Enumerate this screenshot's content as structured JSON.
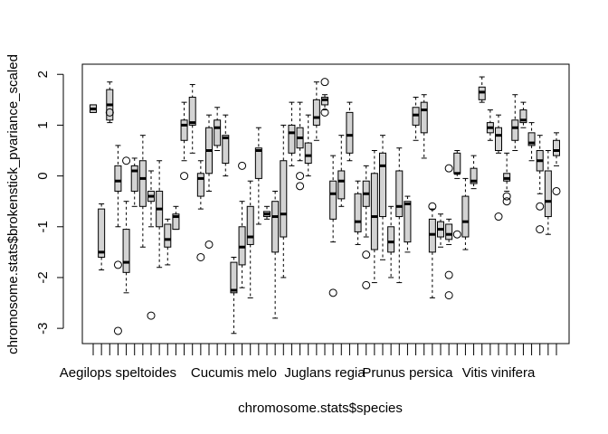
{
  "chart_data": {
    "type": "box",
    "xlabel": "chromosome.stats$species",
    "ylabel": "chromosome.stats$brokenstick_pvariance_scaled",
    "ylim": [
      -3.3,
      2.2
    ],
    "yticks": [
      -3,
      -2,
      -1,
      0,
      1,
      2
    ],
    "ytick_labels": [
      "-3",
      "-2",
      "-1",
      "0",
      "1",
      "2"
    ],
    "x_labels": [
      {
        "index": 3,
        "label": "Aegilops speltoides"
      },
      {
        "index": 17,
        "label": "Cucumis melo"
      },
      {
        "index": 28,
        "label": "Juglans regia"
      },
      {
        "index": 38,
        "label": "Prunus persica"
      },
      {
        "index": 49,
        "label": "Vitis vinifera"
      }
    ],
    "boxes": [
      {
        "min": 1.25,
        "q1": 1.25,
        "median": 1.32,
        "q3": 1.4,
        "max": 1.4,
        "outliers": []
      },
      {
        "min": -1.85,
        "q1": -1.6,
        "median": -1.5,
        "q3": -0.65,
        "max": -0.55,
        "outliers": []
      },
      {
        "min": 1.05,
        "q1": 1.1,
        "median": 1.4,
        "q3": 1.7,
        "max": 1.85,
        "outliers": [
          1.25
        ]
      },
      {
        "min": -1.0,
        "q1": -0.3,
        "median": -0.1,
        "q3": 0.2,
        "max": 0.6,
        "outliers": [
          -1.75,
          -3.05
        ]
      },
      {
        "min": -2.3,
        "q1": -1.9,
        "median": -1.7,
        "q3": -1.05,
        "max": -0.5,
        "outliers": [
          0.3
        ]
      },
      {
        "min": -0.6,
        "q1": -0.3,
        "median": 0.1,
        "q3": 0.2,
        "max": 0.35,
        "outliers": []
      },
      {
        "min": -1.4,
        "q1": -0.6,
        "median": -0.05,
        "q3": 0.3,
        "max": 0.8,
        "outliers": []
      },
      {
        "min": -1.0,
        "q1": -0.5,
        "median": -0.4,
        "q3": -0.3,
        "max": 0.1,
        "outliers": [
          -2.75
        ]
      },
      {
        "min": -1.8,
        "q1": -1.0,
        "median": -0.65,
        "q3": -0.3,
        "max": 0.3,
        "outliers": []
      },
      {
        "min": -1.75,
        "q1": -1.4,
        "median": -1.25,
        "q3": -0.95,
        "max": -0.85,
        "outliers": []
      },
      {
        "min": -1.05,
        "q1": -1.05,
        "median": -0.8,
        "q3": -0.75,
        "max": -0.6,
        "outliers": []
      },
      {
        "min": 0.3,
        "q1": 0.7,
        "median": 1.0,
        "q3": 1.1,
        "max": 1.45,
        "outliers": [
          0.0
        ]
      },
      {
        "min": 0.45,
        "q1": 1.0,
        "median": 1.05,
        "q3": 1.55,
        "max": 1.8,
        "outliers": []
      },
      {
        "min": -0.65,
        "q1": -0.4,
        "median": -0.05,
        "q3": 0.05,
        "max": 0.3,
        "outliers": [
          -1.6
        ]
      },
      {
        "min": -0.3,
        "q1": 0.05,
        "median": 0.5,
        "q3": 0.95,
        "max": 1.2,
        "outliers": [
          -1.35
        ]
      },
      {
        "min": 0.5,
        "q1": 0.6,
        "median": 0.95,
        "q3": 1.1,
        "max": 1.35,
        "outliers": []
      },
      {
        "min": 0.0,
        "q1": 0.25,
        "median": 0.75,
        "q3": 0.8,
        "max": 1.2,
        "outliers": []
      },
      {
        "min": -3.1,
        "q1": -2.3,
        "median": -2.25,
        "q3": -1.7,
        "max": -1.6,
        "outliers": []
      },
      {
        "min": -2.2,
        "q1": -1.75,
        "median": -1.4,
        "q3": -1.0,
        "max": -0.5,
        "outliers": [
          0.2
        ]
      },
      {
        "min": -2.4,
        "q1": -1.35,
        "median": -1.2,
        "q3": -0.6,
        "max": -0.1,
        "outliers": []
      },
      {
        "min": -0.95,
        "q1": -0.05,
        "median": 0.5,
        "q3": 0.55,
        "max": 0.95,
        "outliers": []
      },
      {
        "min": -0.85,
        "q1": -0.8,
        "median": -0.75,
        "q3": -0.7,
        "max": -0.6,
        "outliers": []
      },
      {
        "min": -2.8,
        "q1": -1.5,
        "median": -0.8,
        "q3": -0.5,
        "max": -0.3,
        "outliers": []
      },
      {
        "min": -2.0,
        "q1": -1.2,
        "median": -0.75,
        "q3": 0.3,
        "max": 1.0,
        "outliers": []
      },
      {
        "min": 0.2,
        "q1": 0.45,
        "median": 0.85,
        "q3": 1.0,
        "max": 1.45,
        "outliers": []
      },
      {
        "min": 0.3,
        "q1": 0.55,
        "median": 0.75,
        "q3": 0.95,
        "max": 1.45,
        "outliers": [
          0.0,
          -0.2
        ]
      },
      {
        "min": 0.0,
        "q1": 0.25,
        "median": 0.4,
        "q3": 0.65,
        "max": 1.2,
        "outliers": []
      },
      {
        "min": 0.7,
        "q1": 1.0,
        "median": 1.15,
        "q3": 1.5,
        "max": 1.85,
        "outliers": []
      },
      {
        "min": 1.3,
        "q1": 1.4,
        "median": 1.5,
        "q3": 1.55,
        "max": 1.6,
        "outliers": [
          1.85,
          1.25
        ]
      },
      {
        "min": -1.3,
        "q1": -0.85,
        "median": -0.35,
        "q3": -0.1,
        "max": 0.4,
        "outliers": [
          -2.3
        ]
      },
      {
        "min": -0.6,
        "q1": -0.45,
        "median": -0.1,
        "q3": 0.1,
        "max": 0.8,
        "outliers": []
      },
      {
        "min": 0.3,
        "q1": 0.45,
        "median": 0.8,
        "q3": 1.25,
        "max": 1.45,
        "outliers": []
      },
      {
        "min": -1.35,
        "q1": -1.1,
        "median": -0.9,
        "q3": -0.35,
        "max": -0.1,
        "outliers": []
      },
      {
        "min": -1.2,
        "q1": -0.6,
        "median": -0.35,
        "q3": -0.1,
        "max": 0.2,
        "outliers": [
          -1.55,
          -2.15
        ]
      },
      {
        "min": -2.1,
        "q1": -1.45,
        "median": -0.8,
        "q3": 0.05,
        "max": 0.5,
        "outliers": []
      },
      {
        "min": -1.65,
        "q1": -0.8,
        "median": 0.2,
        "q3": 0.45,
        "max": 0.8,
        "outliers": []
      },
      {
        "min": -2.0,
        "q1": -1.5,
        "median": -1.3,
        "q3": -1.0,
        "max": -0.6,
        "outliers": []
      },
      {
        "min": -2.1,
        "q1": -0.8,
        "median": -0.6,
        "q3": 0.1,
        "max": 0.55,
        "outliers": []
      },
      {
        "min": -1.5,
        "q1": -1.3,
        "median": -0.55,
        "q3": -0.5,
        "max": -0.4,
        "outliers": []
      },
      {
        "min": 0.7,
        "q1": 1.0,
        "median": 1.2,
        "q3": 1.35,
        "max": 1.55,
        "outliers": []
      },
      {
        "min": 0.35,
        "q1": 0.85,
        "median": 1.3,
        "q3": 1.45,
        "max": 1.6,
        "outliers": []
      },
      {
        "min": -2.4,
        "q1": -1.5,
        "median": -1.15,
        "q3": -0.85,
        "max": -0.65,
        "outliers": [
          -0.6
        ]
      },
      {
        "min": -1.4,
        "q1": -1.2,
        "median": -1.05,
        "q3": -0.9,
        "max": -0.75,
        "outliers": []
      },
      {
        "min": -1.35,
        "q1": -1.25,
        "median": -1.15,
        "q3": -0.95,
        "max": -0.85,
        "outliers": [
          -1.95,
          -2.35,
          0.15
        ]
      },
      {
        "min": -0.05,
        "q1": 0.05,
        "median": 0.05,
        "q3": 0.45,
        "max": 0.5,
        "outliers": [
          -1.15
        ]
      },
      {
        "min": -1.45,
        "q1": -1.2,
        "median": -0.9,
        "q3": -0.4,
        "max": -0.05,
        "outliers": []
      },
      {
        "min": -0.25,
        "q1": -0.15,
        "median": -0.1,
        "q3": 0.15,
        "max": 0.4,
        "outliers": []
      },
      {
        "min": 1.45,
        "q1": 1.5,
        "median": 1.65,
        "q3": 1.75,
        "max": 1.95,
        "outliers": []
      },
      {
        "min": 0.7,
        "q1": 0.85,
        "median": 0.95,
        "q3": 1.05,
        "max": 1.3,
        "outliers": []
      },
      {
        "min": 0.45,
        "q1": 0.5,
        "median": 0.8,
        "q3": 0.95,
        "max": 1.2,
        "outliers": [
          -0.8
        ]
      },
      {
        "min": -0.3,
        "q1": -0.1,
        "median": -0.05,
        "q3": 0.05,
        "max": 0.45,
        "outliers": [
          -0.4,
          -0.5
        ]
      },
      {
        "min": 0.5,
        "q1": 0.7,
        "median": 0.95,
        "q3": 1.1,
        "max": 1.6,
        "outliers": []
      },
      {
        "min": 0.95,
        "q1": 1.05,
        "median": 1.1,
        "q3": 1.3,
        "max": 1.45,
        "outliers": []
      },
      {
        "min": 0.3,
        "q1": 0.6,
        "median": 0.65,
        "q3": 0.85,
        "max": 1.05,
        "outliers": []
      },
      {
        "min": -0.35,
        "q1": 0.1,
        "median": 0.3,
        "q3": 0.5,
        "max": 0.8,
        "outliers": [
          -0.6,
          -1.05
        ]
      },
      {
        "min": -1.15,
        "q1": -0.8,
        "median": -0.5,
        "q3": 0.1,
        "max": 0.5,
        "outliers": []
      },
      {
        "min": 0.2,
        "q1": 0.4,
        "median": 0.5,
        "q3": 0.7,
        "max": 0.85,
        "outliers": [
          -0.3
        ]
      }
    ]
  }
}
